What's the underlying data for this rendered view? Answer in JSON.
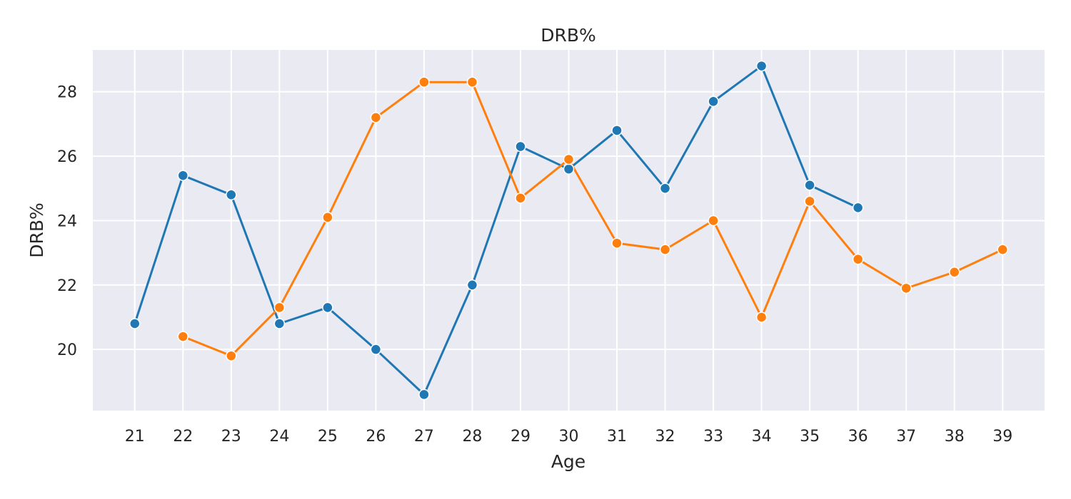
{
  "chart_data": {
    "type": "line",
    "title": "DRB%",
    "xlabel": "Age",
    "ylabel": "DRB%",
    "grid": true,
    "legend": "none",
    "x_ticks": [
      21,
      22,
      23,
      24,
      25,
      26,
      27,
      28,
      29,
      30,
      31,
      32,
      33,
      34,
      35,
      36,
      37,
      38,
      39
    ],
    "y_ticks": [
      20,
      22,
      24,
      26,
      28
    ],
    "xlim": [
      20.13,
      39.87
    ],
    "ylim": [
      18.1,
      29.3
    ],
    "colors": {
      "background": "#eaeaf2",
      "grid": "#ffffff"
    },
    "series": [
      {
        "color": "#1f77b4",
        "x": [
          21,
          22,
          23,
          24,
          25,
          26,
          27,
          28,
          29,
          30,
          31,
          32,
          33,
          34,
          35,
          36
        ],
        "y": [
          20.8,
          25.4,
          24.8,
          20.8,
          21.3,
          20.0,
          18.6,
          22.0,
          26.3,
          25.6,
          26.8,
          25.0,
          27.7,
          28.8,
          25.1,
          24.4
        ]
      },
      {
        "color": "#ff7f0e",
        "x": [
          22,
          23,
          24,
          25,
          26,
          27,
          28,
          29,
          30,
          31,
          32,
          33,
          34,
          35,
          36,
          37,
          38,
          39
        ],
        "y": [
          20.4,
          19.8,
          21.3,
          24.1,
          27.2,
          28.3,
          28.3,
          24.7,
          25.9,
          23.3,
          23.1,
          24.0,
          21.0,
          24.6,
          22.8,
          21.9,
          22.4,
          23.1
        ]
      }
    ]
  }
}
